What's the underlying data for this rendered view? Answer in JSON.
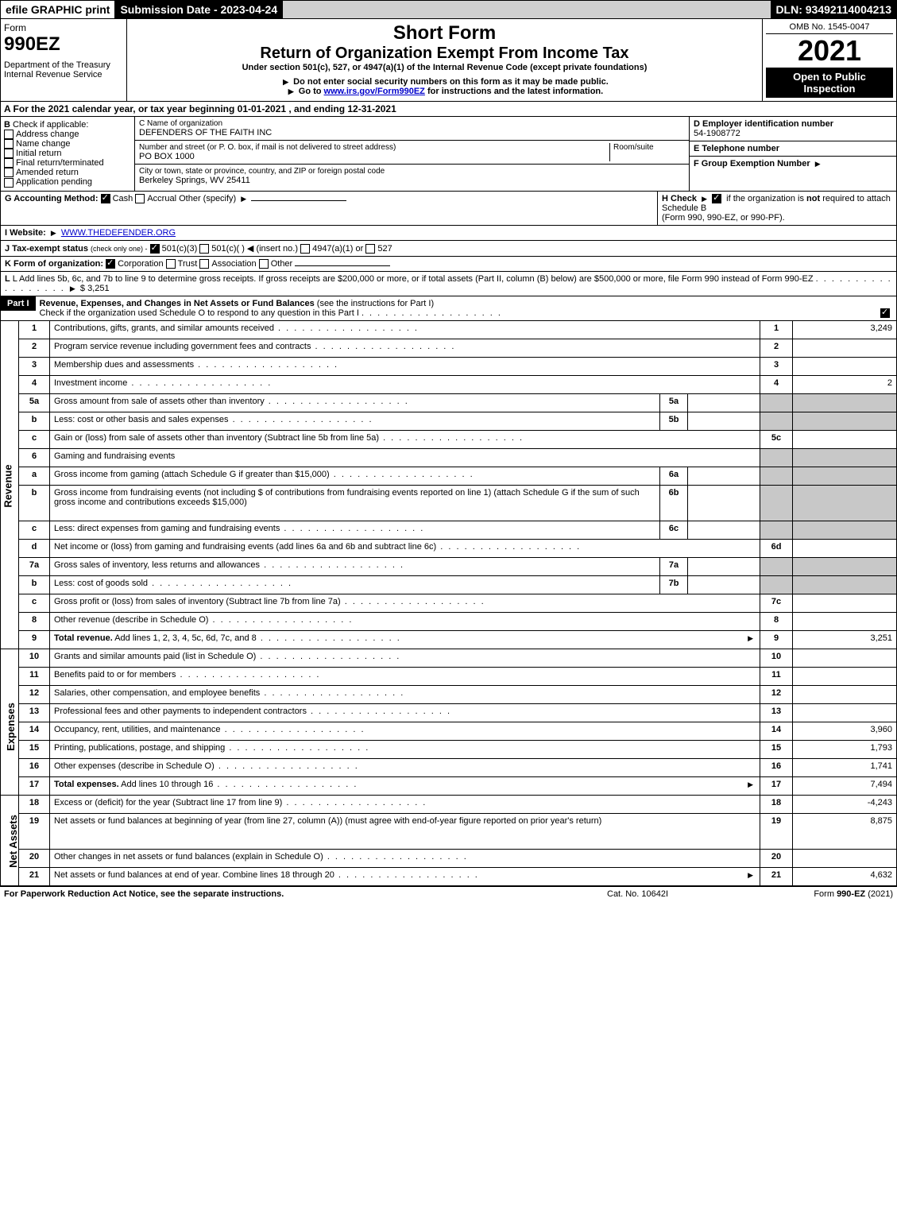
{
  "header": {
    "efile": "efile GRAPHIC print",
    "submission_date": "Submission Date - 2023-04-24",
    "dln": "DLN: 93492114004213"
  },
  "top": {
    "form_word": "Form",
    "form_number": "990EZ",
    "department": "Department of the Treasury",
    "irs": "Internal Revenue Service",
    "short_form": "Short Form",
    "title": "Return of Organization Exempt From Income Tax",
    "subtitle": "Under section 501(c), 527, or 4947(a)(1) of the Internal Revenue Code (except private foundations)",
    "warn": "Do not enter social security numbers on this form as it may be made public.",
    "goto_prefix": "Go to",
    "goto_link": "www.irs.gov/Form990EZ",
    "goto_suffix": "for instructions and the latest information.",
    "omb": "OMB No. 1545-0047",
    "year": "2021",
    "open": "Open to Public Inspection"
  },
  "line_a": "A  For the 2021 calendar year, or tax year beginning 01-01-2021 , and ending 12-31-2021",
  "section_b": {
    "title": "B",
    "check_label": "Check if applicable:",
    "opts": [
      "Address change",
      "Name change",
      "Initial return",
      "Final return/terminated",
      "Amended return",
      "Application pending"
    ]
  },
  "section_c": {
    "name_label": "C Name of organization",
    "name": "DEFENDERS OF THE FAITH INC",
    "street_label": "Number and street (or P. O. box, if mail is not delivered to street address)",
    "room_label": "Room/suite",
    "street": "PO BOX 1000",
    "city_label": "City or town, state or province, country, and ZIP or foreign postal code",
    "city": "Berkeley Springs, WV  25411"
  },
  "section_def": {
    "d_label": "D Employer identification number",
    "d_value": "54-1908772",
    "e_label": "E Telephone number",
    "f_label": "F Group Exemption Number"
  },
  "row_g": {
    "label": "G Accounting Method:",
    "cash": "Cash",
    "accrual": "Accrual",
    "other": "Other (specify)"
  },
  "row_h": {
    "text1": "H  Check",
    "text2": "if the organization is",
    "text3": "not",
    "text4": "required to attach Schedule B",
    "text5": "(Form 990, 990-EZ, or 990-PF)."
  },
  "row_i": {
    "label": "I Website:",
    "value": "WWW.THEDEFENDER.ORG"
  },
  "row_j": {
    "label": "J Tax-exempt status",
    "note": "(check only one) -",
    "o1": "501(c)(3)",
    "o2": "501(c)(  )",
    "o2b": "(insert no.)",
    "o3": "4947(a)(1) or",
    "o4": "527"
  },
  "row_k": {
    "label": "K Form of organization:",
    "o1": "Corporation",
    "o2": "Trust",
    "o3": "Association",
    "o4": "Other"
  },
  "row_l": {
    "text": "L Add lines 5b, 6c, and 7b to line 9 to determine gross receipts. If gross receipts are $200,000 or more, or if total assets (Part II, column (B) below) are $500,000 or more, file Form 990 instead of Form 990-EZ",
    "value": "$ 3,251"
  },
  "part1": {
    "label": "Part I",
    "title": "Revenue, Expenses, and Changes in Net Assets or Fund Balances",
    "note": "(see the instructions for Part I)",
    "check_text": "Check if the organization used Schedule O to respond to any question in this Part I"
  },
  "revenue": {
    "section": "Revenue",
    "rows": [
      {
        "n": "1",
        "d": "Contributions, gifts, grants, and similar amounts received",
        "c": "1",
        "v": "3,249"
      },
      {
        "n": "2",
        "d": "Program service revenue including government fees and contracts",
        "c": "2",
        "v": ""
      },
      {
        "n": "3",
        "d": "Membership dues and assessments",
        "c": "3",
        "v": ""
      },
      {
        "n": "4",
        "d": "Investment income",
        "c": "4",
        "v": "2"
      },
      {
        "n": "5a",
        "d": "Gross amount from sale of assets other than inventory",
        "mini": "5a"
      },
      {
        "n": "b",
        "d": "Less: cost or other basis and sales expenses",
        "mini": "5b"
      },
      {
        "n": "c",
        "d": "Gain or (loss) from sale of assets other than inventory (Subtract line 5b from line 5a)",
        "c": "5c",
        "v": ""
      },
      {
        "n": "6",
        "d": "Gaming and fundraising events",
        "header": true
      },
      {
        "n": "a",
        "d": "Gross income from gaming (attach Schedule G if greater than $15,000)",
        "mini": "6a"
      },
      {
        "n": "b",
        "d": "Gross income from fundraising events (not including $                      of contributions from fundraising events reported on line 1) (attach Schedule G if the sum of such gross income and contributions exceeds $15,000)",
        "mini": "6b",
        "tall": true
      },
      {
        "n": "c",
        "d": "Less: direct expenses from gaming and fundraising events",
        "mini": "6c"
      },
      {
        "n": "d",
        "d": "Net income or (loss) from gaming and fundraising events (add lines 6a and 6b and subtract line 6c)",
        "c": "6d",
        "v": ""
      },
      {
        "n": "7a",
        "d": "Gross sales of inventory, less returns and allowances",
        "mini": "7a"
      },
      {
        "n": "b",
        "d": "Less: cost of goods sold",
        "mini": "7b"
      },
      {
        "n": "c",
        "d": "Gross profit or (loss) from sales of inventory (Subtract line 7b from line 7a)",
        "c": "7c",
        "v": ""
      },
      {
        "n": "8",
        "d": "Other revenue (describe in Schedule O)",
        "c": "8",
        "v": ""
      },
      {
        "n": "9",
        "d": "Total revenue. Add lines 1, 2, 3, 4, 5c, 6d, 7c, and 8",
        "c": "9",
        "v": "3,251",
        "bold": true,
        "arrow": true
      }
    ]
  },
  "expenses": {
    "section": "Expenses",
    "rows": [
      {
        "n": "10",
        "d": "Grants and similar amounts paid (list in Schedule O)",
        "c": "10",
        "v": ""
      },
      {
        "n": "11",
        "d": "Benefits paid to or for members",
        "c": "11",
        "v": ""
      },
      {
        "n": "12",
        "d": "Salaries, other compensation, and employee benefits",
        "c": "12",
        "v": ""
      },
      {
        "n": "13",
        "d": "Professional fees and other payments to independent contractors",
        "c": "13",
        "v": ""
      },
      {
        "n": "14",
        "d": "Occupancy, rent, utilities, and maintenance",
        "c": "14",
        "v": "3,960"
      },
      {
        "n": "15",
        "d": "Printing, publications, postage, and shipping",
        "c": "15",
        "v": "1,793"
      },
      {
        "n": "16",
        "d": "Other expenses (describe in Schedule O)",
        "c": "16",
        "v": "1,741"
      },
      {
        "n": "17",
        "d": "Total expenses. Add lines 10 through 16",
        "c": "17",
        "v": "7,494",
        "bold": true,
        "arrow": true
      }
    ]
  },
  "netassets": {
    "section": "Net Assets",
    "rows": [
      {
        "n": "18",
        "d": "Excess or (deficit) for the year (Subtract line 17 from line 9)",
        "c": "18",
        "v": "-4,243"
      },
      {
        "n": "19",
        "d": "Net assets or fund balances at beginning of year (from line 27, column (A)) (must agree with end-of-year figure reported on prior year's return)",
        "c": "19",
        "v": "8,875",
        "tall": true
      },
      {
        "n": "20",
        "d": "Other changes in net assets or fund balances (explain in Schedule O)",
        "c": "20",
        "v": ""
      },
      {
        "n": "21",
        "d": "Net assets or fund balances at end of year. Combine lines 18 through 20",
        "c": "21",
        "v": "4,632",
        "arrow": true
      }
    ]
  },
  "footer": {
    "left": "For Paperwork Reduction Act Notice, see the separate instructions.",
    "mid": "Cat. No. 10642I",
    "right_pre": "Form",
    "right_bold": "990-EZ",
    "right_suf": "(2021)"
  }
}
